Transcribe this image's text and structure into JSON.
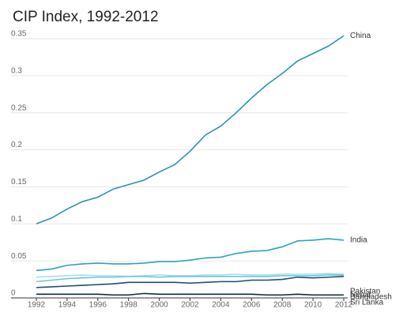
{
  "chart_data": {
    "type": "line",
    "title": "CIP Index, 1992-2012",
    "x": [
      1992,
      1993,
      1994,
      1995,
      1996,
      1997,
      1998,
      1999,
      2000,
      2001,
      2002,
      2003,
      2004,
      2005,
      2006,
      2007,
      2008,
      2009,
      2010,
      2011,
      2012
    ],
    "xlim": [
      1992,
      2012
    ],
    "xticks": [
      1992,
      1994,
      1996,
      1998,
      2000,
      2002,
      2004,
      2006,
      2008,
      2010,
      2012
    ],
    "ylim": [
      0,
      0.35
    ],
    "yticks": [
      0,
      0.05,
      0.1,
      0.15,
      0.2,
      0.25,
      0.3,
      0.35
    ],
    "grid": true,
    "series": [
      {
        "name": "China",
        "color": "#2a93b0",
        "values": [
          0.1,
          0.108,
          0.12,
          0.13,
          0.136,
          0.147,
          0.153,
          0.159,
          0.17,
          0.18,
          0.198,
          0.22,
          0.232,
          0.25,
          0.27,
          0.288,
          0.303,
          0.32,
          0.33,
          0.34,
          0.354
        ]
      },
      {
        "name": "India",
        "color": "#2aa2c4",
        "values": [
          0.037,
          0.039,
          0.044,
          0.046,
          0.047,
          0.046,
          0.046,
          0.047,
          0.049,
          0.049,
          0.051,
          0.054,
          0.055,
          0.06,
          0.063,
          0.064,
          0.069,
          0.077,
          0.078,
          0.08,
          0.078
        ]
      },
      {
        "name": "Pakistan",
        "color": "#a8dde8",
        "values": [
          0.028,
          0.029,
          0.03,
          0.031,
          0.03,
          0.03,
          0.029,
          0.03,
          0.031,
          0.03,
          0.03,
          0.031,
          0.031,
          0.032,
          0.031,
          0.031,
          0.032,
          0.032,
          0.032,
          0.033,
          0.032
        ]
      },
      {
        "name": "Bangladesh",
        "color": "#6cc4d8",
        "values": [
          0.022,
          0.024,
          0.026,
          0.027,
          0.028,
          0.028,
          0.029,
          0.029,
          0.028,
          0.029,
          0.029,
          0.029,
          0.029,
          0.029,
          0.029,
          0.029,
          0.03,
          0.03,
          0.03,
          0.031,
          0.031
        ]
      },
      {
        "name": "Sri Lanka",
        "color": "#1b4f72",
        "values": [
          0.014,
          0.015,
          0.016,
          0.017,
          0.018,
          0.019,
          0.021,
          0.021,
          0.021,
          0.021,
          0.02,
          0.021,
          0.022,
          0.022,
          0.024,
          0.024,
          0.025,
          0.028,
          0.027,
          0.028,
          0.029
        ]
      },
      {
        "name": "Nepal",
        "color": "#0d2b3e",
        "values": [
          0.005,
          0.005,
          0.005,
          0.005,
          0.005,
          0.004,
          0.004,
          0.006,
          0.005,
          0.005,
          0.005,
          0.005,
          0.005,
          0.005,
          0.005,
          0.004,
          0.004,
          0.005,
          0.004,
          0.004,
          0.004
        ]
      }
    ]
  }
}
